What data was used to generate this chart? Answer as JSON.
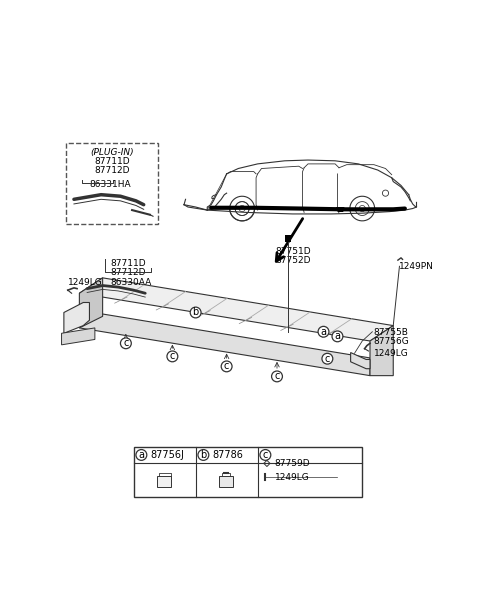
{
  "bg_color": "#ffffff",
  "line_color": "#333333",
  "part_labels": {
    "plug_in_box": "(PLUG-IN)",
    "plug_in_parts": [
      "87711D",
      "87712D"
    ],
    "plug_in_part2": "86331HA",
    "main_left_parts": [
      "87711D",
      "87712D"
    ],
    "main_left_part2": "86330AA",
    "main_left_clip": "1249LG",
    "arrow_label1": "87751D",
    "arrow_label2": "87752D",
    "right_label": "1249PN",
    "right_parts1": "87755B",
    "right_parts2": "87756G",
    "right_clip": "1249LG",
    "legend_a": "87756J",
    "legend_b": "87786",
    "legend_c1": "87759D",
    "legend_c2": "1249LG"
  }
}
